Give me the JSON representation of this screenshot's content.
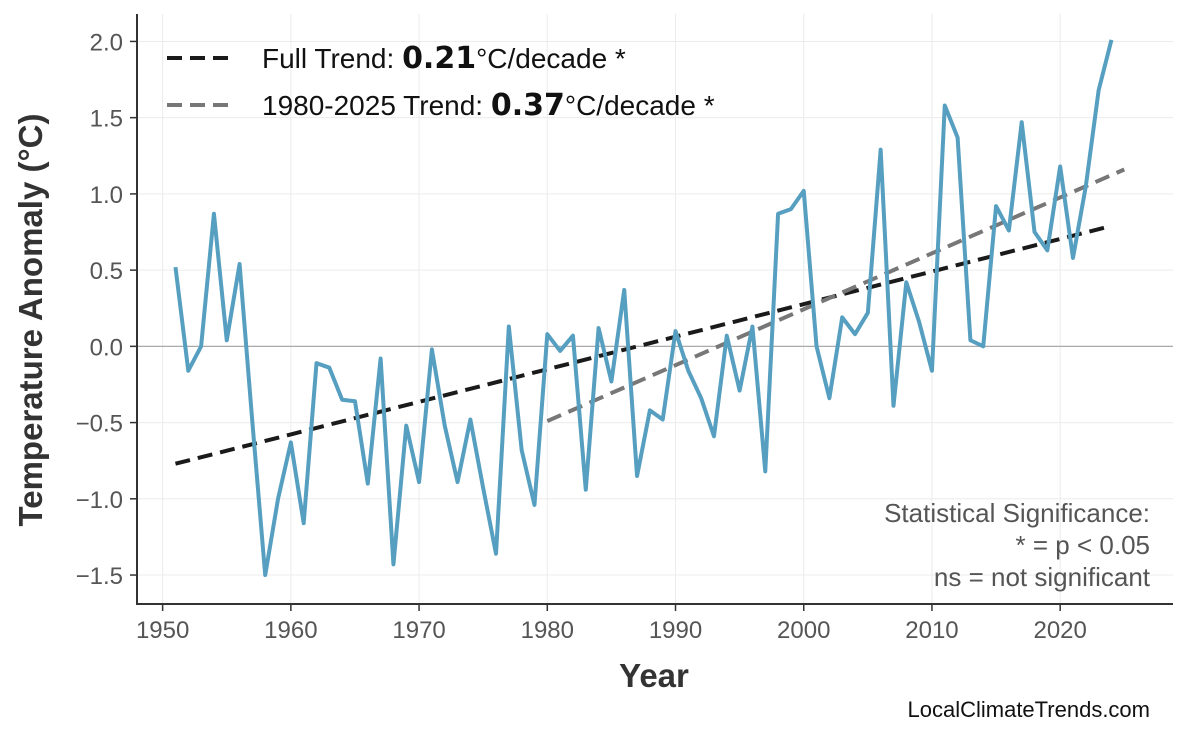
{
  "chart_data": {
    "type": "line",
    "title": "",
    "xlabel": "Year",
    "ylabel": "Temperature Anomaly (°C)",
    "xlim": [
      1948,
      2028.8
    ],
    "ylim": [
      -1.69,
      2.18
    ],
    "grid": true,
    "legend_placement": "top-left",
    "xticks": [
      1950,
      1960,
      1970,
      1980,
      1990,
      2000,
      2010,
      2020
    ],
    "yticks": [
      -1.5,
      -1.0,
      -0.5,
      0.0,
      0.5,
      1.0,
      1.5,
      2.0
    ],
    "ytick_labels": [
      "−1.5",
      "−1.0",
      "−0.5",
      "0.0",
      "0.5",
      "1.0",
      "1.5",
      "2.0"
    ],
    "series": {
      "color": "#569fc0",
      "x": [
        1951,
        1952,
        1953,
        1954,
        1955,
        1956,
        1957,
        1958,
        1959,
        1960,
        1961,
        1962,
        1963,
        1964,
        1965,
        1966,
        1967,
        1968,
        1969,
        1970,
        1971,
        1972,
        1973,
        1974,
        1975,
        1976,
        1977,
        1978,
        1979,
        1980,
        1981,
        1982,
        1983,
        1984,
        1985,
        1986,
        1987,
        1988,
        1989,
        1990,
        1991,
        1992,
        1993,
        1994,
        1995,
        1996,
        1997,
        1998,
        1999,
        2000,
        2001,
        2002,
        2003,
        2004,
        2005,
        2006,
        2007,
        2008,
        2009,
        2010,
        2011,
        2012,
        2013,
        2014,
        2015,
        2016,
        2017,
        2018,
        2019,
        2020,
        2021,
        2022,
        2023,
        2024
      ],
      "y": [
        0.52,
        -0.16,
        0.0,
        0.87,
        0.04,
        0.54,
        -0.5,
        -1.5,
        -1.0,
        -0.63,
        -1.16,
        -0.11,
        -0.14,
        -0.35,
        -0.36,
        -0.9,
        -0.08,
        -1.43,
        -0.52,
        -0.89,
        -0.02,
        -0.52,
        -0.89,
        -0.48,
        -0.93,
        -1.36,
        0.13,
        -0.68,
        -1.04,
        0.08,
        -0.03,
        0.07,
        -0.94,
        0.12,
        -0.23,
        0.37,
        -0.85,
        -0.42,
        -0.48,
        0.1,
        -0.16,
        -0.34,
        -0.59,
        0.07,
        -0.29,
        0.13,
        -0.82,
        0.87,
        0.9,
        1.02,
        0.0,
        -0.34,
        0.19,
        0.08,
        0.22,
        1.29,
        -0.39,
        0.42,
        0.16,
        -0.16,
        1.58,
        1.37,
        0.04,
        0.0,
        0.92,
        0.76,
        1.47,
        0.75,
        0.63,
        1.18,
        0.58,
        1.05,
        1.68,
        2.01
      ]
    },
    "trends": [
      {
        "label_prefix": "Full Trend: ",
        "value": "0.21",
        "label_suffix": "°C/decade *",
        "color": "#1a1a1a",
        "x": [
          1951,
          2024
        ],
        "y": [
          -0.77,
          0.79
        ]
      },
      {
        "label_prefix": "1980-2025 Trend: ",
        "value": "0.37",
        "label_suffix": "°C/decade *",
        "color": "#777777",
        "x": [
          1980,
          2025
        ],
        "y": [
          -0.49,
          1.16
        ]
      }
    ],
    "annotation": [
      "Statistical Significance:",
      "* = p < 0.05",
      "ns = not significant"
    ],
    "watermark": "LocalClimateTrends.com"
  }
}
